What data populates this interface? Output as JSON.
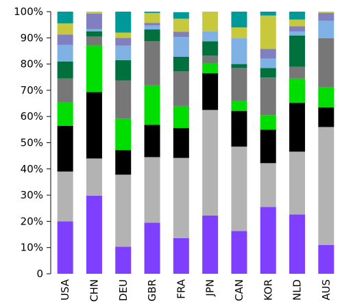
{
  "chart_data": {
    "type": "bar",
    "stacked": true,
    "categories": [
      "USA",
      "CHN",
      "DEU",
      "GBR",
      "FRA",
      "JPN",
      "CAN",
      "KOR",
      "NLD",
      "AUS"
    ],
    "ylim": [
      0,
      100
    ],
    "yticks": [
      {
        "value": 0,
        "label": "0"
      },
      {
        "value": 10,
        "label": "10%"
      },
      {
        "value": 20,
        "label": "20%"
      },
      {
        "value": 30,
        "label": "30%"
      },
      {
        "value": 40,
        "label": "40%"
      },
      {
        "value": 50,
        "label": "50%"
      },
      {
        "value": 60,
        "label": "60%"
      },
      {
        "value": 70,
        "label": "70%"
      },
      {
        "value": 80,
        "label": "80%"
      },
      {
        "value": 90,
        "label": "90%"
      },
      {
        "value": 100,
        "label": "100%"
      }
    ],
    "grid": false,
    "legend": "none",
    "series": [
      {
        "color": "#7f3fff",
        "values": [
          20,
          29.8,
          10.3,
          19.5,
          13.6,
          22.2,
          16.3,
          25.5,
          22.6,
          11
        ]
      },
      {
        "color": "#b3b3b3",
        "values": [
          19,
          14.2,
          27.5,
          25,
          30.6,
          40.3,
          32.2,
          16.7,
          24,
          45
        ]
      },
      {
        "color": "#000000",
        "values": [
          17.4,
          25.3,
          9.4,
          12.3,
          11.4,
          14,
          13.6,
          12.8,
          18.6,
          7.5
        ]
      },
      {
        "color": "#00dd00",
        "values": [
          8.9,
          17.8,
          12,
          15.1,
          8.4,
          3.8,
          3.8,
          5.5,
          9.3,
          7.6
        ]
      },
      {
        "color": "#777777",
        "values": [
          9.2,
          3.4,
          14.5,
          16.8,
          13.2,
          2.9,
          12.6,
          14.4,
          4.5,
          18.8
        ]
      },
      {
        "color": "#00703c",
        "values": [
          6.5,
          2,
          7.8,
          4.5,
          5.6,
          5.5,
          1.5,
          3.6,
          11.9,
          0
        ]
      },
      {
        "color": "#7fb1e4",
        "values": [
          6.3,
          0.8,
          5.5,
          1.5,
          7.5,
          3.8,
          9.9,
          3.6,
          1.5,
          6.6
        ]
      },
      {
        "color": "#8080c0",
        "values": [
          4,
          6,
          3,
          1,
          2,
          0,
          0,
          3.7,
          2,
          3
        ]
      },
      {
        "color": "#c8c83c",
        "values": [
          4.2,
          1,
          2,
          3.8,
          5,
          7.5,
          4.1,
          12.7,
          2.6,
          0.5
        ]
      },
      {
        "color": "#009999",
        "values": [
          4.5,
          0,
          8,
          0.5,
          2.5,
          0,
          6,
          1.5,
          3,
          0
        ]
      }
    ]
  }
}
